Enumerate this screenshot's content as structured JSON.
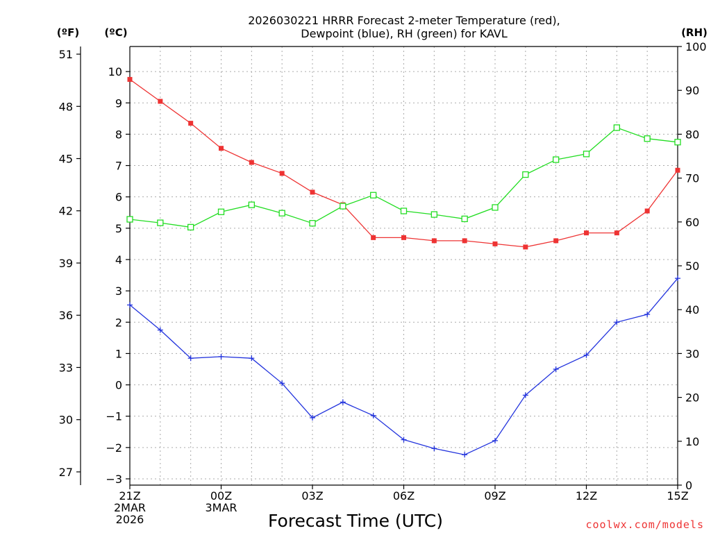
{
  "chart_data": {
    "type": "line",
    "title": [
      "2026030221 HRRR Forecast 2-meter Temperature (red),",
      "Dewpoint (blue), RH (green) for KAVL"
    ],
    "units": {
      "fahrenheit": "(ºF)",
      "celsius": "(ºC)",
      "rh": "(RH)"
    },
    "xlabel": "Forecast Time (UTC)",
    "credit": "coolwx.com/models",
    "x": [
      0,
      1,
      2,
      3,
      4,
      5,
      6,
      7,
      8,
      9,
      10,
      11,
      12,
      13,
      14,
      15,
      16,
      17,
      18
    ],
    "xlim": [
      0,
      18
    ],
    "x_ticks": [
      {
        "x": 0,
        "lines": [
          "21Z",
          "2MAR",
          "2026"
        ]
      },
      {
        "x": 3,
        "lines": [
          "00Z",
          "3MAR"
        ]
      },
      {
        "x": 6,
        "lines": [
          "03Z"
        ]
      },
      {
        "x": 9,
        "lines": [
          "06Z"
        ]
      },
      {
        "x": 12,
        "lines": [
          "09Z"
        ]
      },
      {
        "x": 15,
        "lines": [
          "12Z"
        ]
      },
      {
        "x": 18,
        "lines": [
          "15Z"
        ]
      }
    ],
    "ylim_c": [
      -3.2,
      10.8
    ],
    "yticks_c": [
      -3,
      -2,
      -1,
      0,
      1,
      2,
      3,
      4,
      5,
      6,
      7,
      8,
      9,
      10
    ],
    "ytick_labels_c": [
      "−3",
      "−2",
      "−1",
      "0",
      "1",
      "2",
      "3",
      "4",
      "5",
      "6",
      "7",
      "8",
      "9",
      "10"
    ],
    "ytick_labels_f": [
      "27",
      "30",
      "33",
      "36",
      "39",
      "42",
      "45",
      "48",
      "51"
    ],
    "yticks_f": [
      27,
      30,
      33,
      36,
      39,
      42,
      45,
      48,
      51
    ],
    "ylim_rh": [
      0,
      100
    ],
    "yticks_rh": [
      0,
      10,
      20,
      30,
      40,
      50,
      60,
      70,
      80,
      90,
      100
    ],
    "grid": true,
    "series": [
      {
        "name": "Temperature",
        "axis": "c",
        "color": "#ee3333",
        "marker": "filled-square",
        "values": [
          9.75,
          9.05,
          8.35,
          7.55,
          7.1,
          6.75,
          6.15,
          5.75,
          4.7,
          4.7,
          4.6,
          4.6,
          4.5,
          4.4,
          4.6,
          4.85,
          4.85,
          5.55,
          6.85
        ]
      },
      {
        "name": "Dewpoint",
        "axis": "c",
        "color": "#2233dd",
        "marker": "plus",
        "values": [
          2.55,
          1.75,
          0.85,
          0.9,
          0.85,
          0.05,
          -1.05,
          -0.55,
          -0.98,
          -1.75,
          -2.03,
          -2.23,
          -1.78,
          -0.33,
          0.5,
          0.95,
          2.0,
          2.25,
          3.4
        ]
      },
      {
        "name": "RH",
        "axis": "rh",
        "color": "#22dd22",
        "marker": "open-square",
        "values": [
          60.6,
          59.8,
          58.8,
          62.3,
          63.9,
          62.0,
          59.7,
          63.6,
          66.1,
          62.5,
          61.7,
          60.7,
          63.3,
          70.8,
          74.2,
          75.5,
          81.5,
          79.0,
          78.2
        ]
      }
    ]
  }
}
